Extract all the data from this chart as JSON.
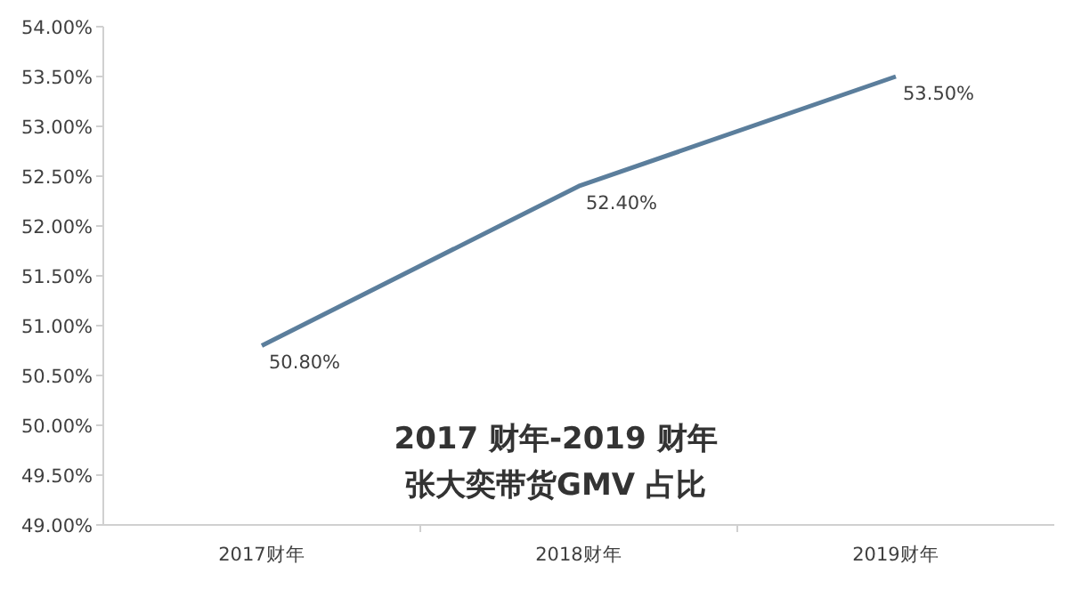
{
  "chart_data": {
    "type": "line",
    "title": "2017 财年-2019 财年",
    "subtitle": "张大奕带货GMV 占比",
    "categories": [
      "2017财年",
      "2018财年",
      "2019财年"
    ],
    "values": [
      50.8,
      52.4,
      53.5
    ],
    "value_labels": [
      "50.80%",
      "52.40%",
      "53.50%"
    ],
    "color": "#5b7e9c",
    "ylim": [
      49,
      54
    ],
    "yticks": [
      {
        "value": 49,
        "label": "49.00%"
      },
      {
        "value": 49.5,
        "label": "49.50%"
      },
      {
        "value": 50,
        "label": "50.00%"
      },
      {
        "value": 50.5,
        "label": "50.50%"
      },
      {
        "value": 51,
        "label": "51.00%"
      },
      {
        "value": 51.5,
        "label": "51.50%"
      },
      {
        "value": 52,
        "label": "52.00%"
      },
      {
        "value": 52.5,
        "label": "52.50%"
      },
      {
        "value": 53,
        "label": "53.00%"
      },
      {
        "value": 53.5,
        "label": "53.50%"
      },
      {
        "value": 54,
        "label": "54.00%"
      }
    ]
  }
}
